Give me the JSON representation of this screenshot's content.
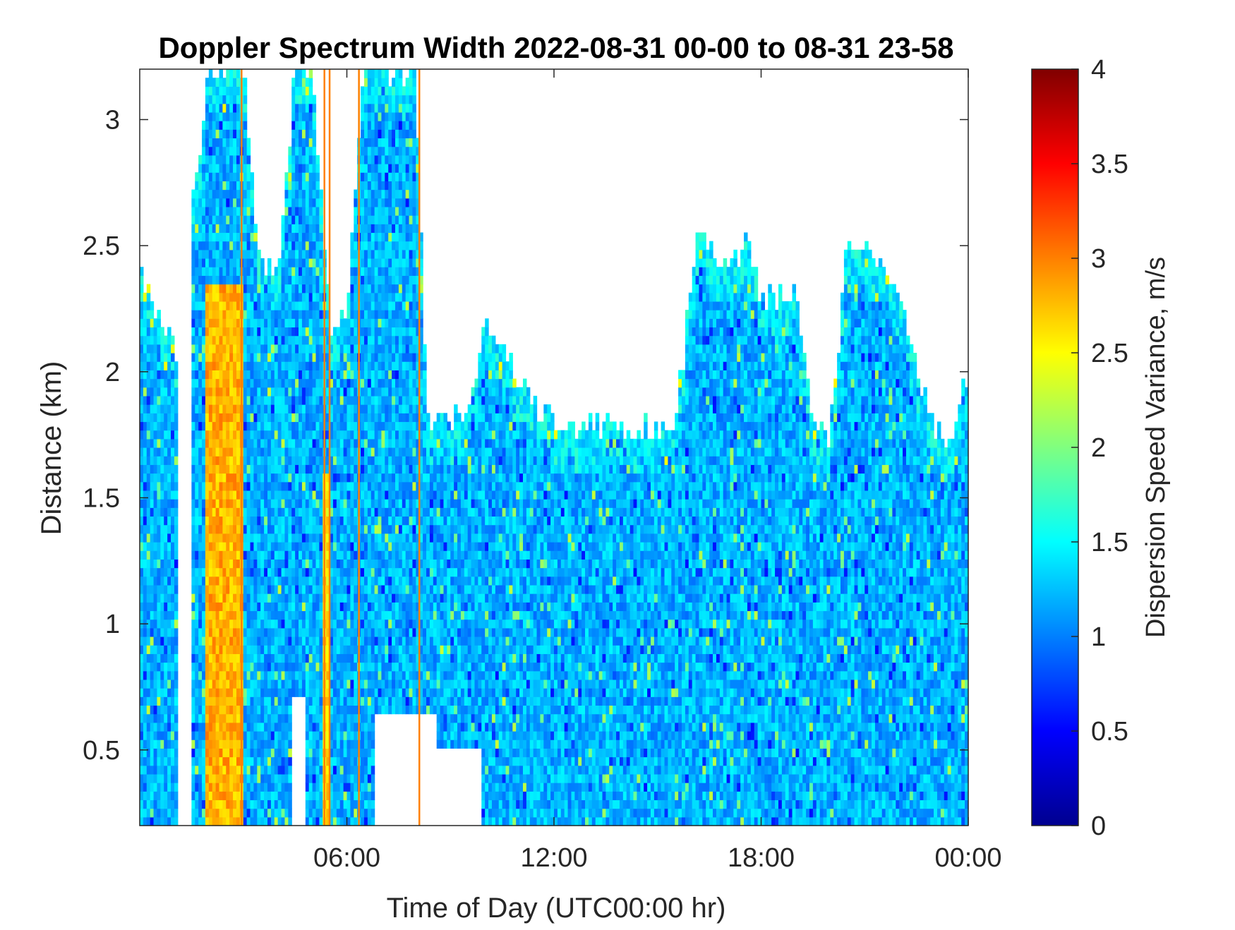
{
  "chart_data": {
    "type": "heatmap",
    "title": "Doppler Spectrum Width 2022-08-31 00-00 to 08-31 23-58",
    "xlabel": "Time of Day (UTC00:00 hr)",
    "ylabel": "Distance (km)",
    "xlim_hours": [
      0,
      24
    ],
    "ylim_km": [
      0.2,
      3.2
    ],
    "x_ticks": [
      {
        "hour": 6,
        "label": "06:00"
      },
      {
        "hour": 12,
        "label": "12:00"
      },
      {
        "hour": 18,
        "label": "18:00"
      },
      {
        "hour": 24,
        "label": "00:00"
      }
    ],
    "y_ticks": [
      {
        "value": 0.5,
        "label": "0.5"
      },
      {
        "value": 1,
        "label": "1"
      },
      {
        "value": 1.5,
        "label": "1.5"
      },
      {
        "value": 2,
        "label": "2"
      },
      {
        "value": 2.5,
        "label": "2.5"
      },
      {
        "value": 3,
        "label": "3"
      }
    ],
    "colorbar": {
      "label": "Dispersion Speed Variance, m/s",
      "colormap": "jet",
      "range": [
        0,
        4
      ],
      "ticks": [
        {
          "value": 0,
          "label": "0"
        },
        {
          "value": 0.5,
          "label": "0.5"
        },
        {
          "value": 1,
          "label": "1"
        },
        {
          "value": 1.5,
          "label": "1.5"
        },
        {
          "value": 2,
          "label": "2"
        },
        {
          "value": 2.5,
          "label": "2.5"
        },
        {
          "value": 3,
          "label": "3"
        },
        {
          "value": 3.5,
          "label": "3.5"
        },
        {
          "value": 4,
          "label": "4"
        }
      ]
    },
    "data_top_profile": {
      "hours": [
        0,
        0.5,
        1.0,
        1.2,
        1.5,
        2.0,
        2.5,
        3.0,
        3.5,
        4.0,
        4.5,
        5.0,
        5.5,
        6.0,
        6.5,
        7.0,
        7.5,
        8.0,
        8.3,
        8.8,
        9.5,
        10.0,
        10.5,
        11.0,
        11.5,
        12.0,
        13.0,
        14.0,
        15.0,
        15.5,
        16.0,
        16.3,
        16.8,
        17.2,
        17.6,
        18.0,
        18.5,
        19.0,
        19.5,
        20.0,
        20.5,
        21.0,
        21.5,
        22.0,
        22.5,
        23.0,
        23.5,
        24.0
      ],
      "top_km": [
        2.4,
        2.2,
        2.2,
        1.7,
        2.6,
        3.2,
        3.2,
        3.2,
        2.4,
        2.4,
        3.2,
        3.2,
        2.2,
        2.2,
        3.2,
        3.2,
        3.2,
        3.2,
        1.8,
        1.8,
        1.85,
        2.2,
        2.1,
        1.95,
        1.85,
        1.8,
        1.78,
        1.78,
        1.75,
        1.75,
        2.4,
        2.6,
        2.4,
        2.4,
        2.6,
        2.3,
        2.3,
        2.3,
        1.8,
        1.75,
        2.5,
        2.5,
        2.4,
        2.3,
        2.0,
        1.8,
        1.75,
        2.0
      ]
    },
    "gaps": [
      {
        "start_hour": 1.15,
        "end_hour": 1.45,
        "from_km": 0.2,
        "to_km": 3.2
      },
      {
        "start_hour": 4.4,
        "end_hour": 4.8,
        "from_km": 0.2,
        "to_km": 0.7
      },
      {
        "start_hour": 6.8,
        "end_hour": 8.6,
        "from_km": 0.2,
        "to_km": 0.65
      },
      {
        "start_hour": 8.6,
        "end_hour": 9.9,
        "from_km": 0.2,
        "to_km": 0.5
      }
    ],
    "high_variance_bands": [
      {
        "start_hour": 1.9,
        "end_hour": 2.95,
        "from_km": 0.2,
        "to_km": 2.35,
        "value": 2.8
      },
      {
        "start_hour": 5.3,
        "end_hour": 5.55,
        "from_km": 0.2,
        "to_km": 1.6,
        "value": 2.6
      }
    ],
    "vertical_lines": [
      {
        "hour": 2.95,
        "value": 3.0
      },
      {
        "hour": 5.35,
        "value": 3.0
      },
      {
        "hour": 5.5,
        "value": 3.0
      },
      {
        "hour": 6.35,
        "value": 3.0
      },
      {
        "hour": 8.1,
        "value": 3.0
      }
    ]
  }
}
